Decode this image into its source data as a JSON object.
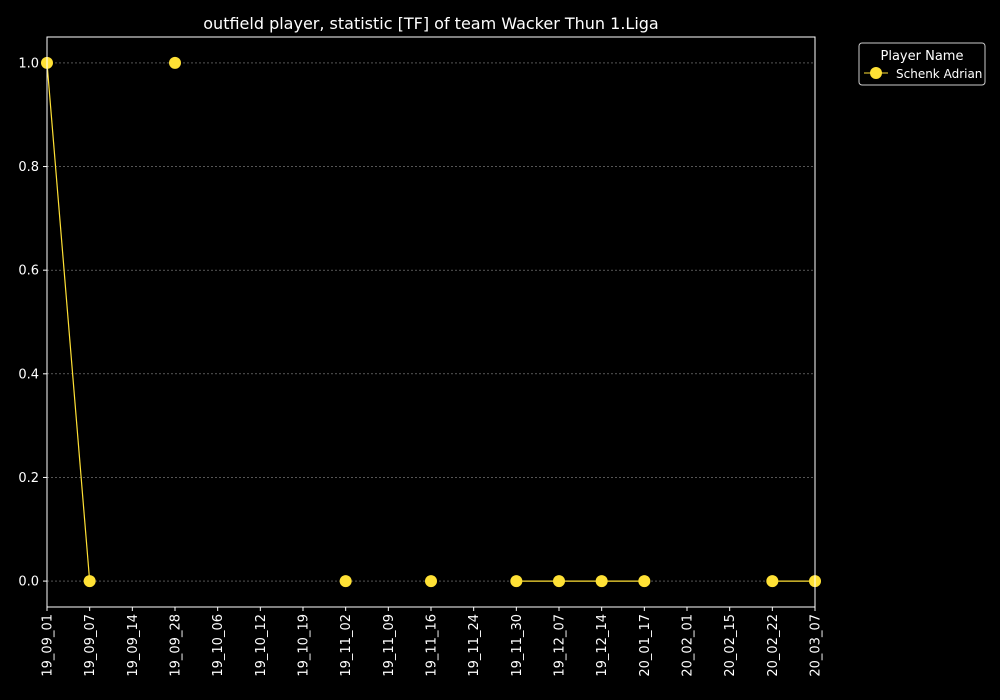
{
  "chart_data": {
    "type": "line",
    "title": "outfield player, statistic [TF] of team Wacker Thun 1.Liga",
    "xlabel": "",
    "ylabel": "",
    "x_ticks": [
      "19_09_01",
      "19_09_07",
      "19_09_14",
      "19_09_28",
      "19_10_06",
      "19_10_12",
      "19_10_19",
      "19_11_02",
      "19_11_09",
      "19_11_16",
      "19_11_24",
      "19_11_30",
      "19_12_07",
      "19_12_14",
      "20_01_17",
      "20_02_01",
      "20_02_15",
      "20_02_22",
      "20_03_07"
    ],
    "y_ticks": [
      "0.0",
      "0.2",
      "0.4",
      "0.6",
      "0.8",
      "1.0"
    ],
    "ylim": [
      -0.05,
      1.05
    ],
    "grid": "horizontal dashed",
    "legend": {
      "title": "Player Name",
      "position": "outside-right-top"
    },
    "series": [
      {
        "name": "Schenk Adrian",
        "color": "#FFE135",
        "points": [
          {
            "x": "19_09_01",
            "y": 1.0
          },
          {
            "x": "19_09_07",
            "y": 0.0
          },
          {
            "x": "19_09_28",
            "y": 1.0
          },
          {
            "x": "19_11_02",
            "y": 0.0
          },
          {
            "x": "19_11_16",
            "y": 0.0
          },
          {
            "x": "19_11_30",
            "y": 0.0
          },
          {
            "x": "19_12_07",
            "y": 0.0
          },
          {
            "x": "19_12_14",
            "y": 0.0
          },
          {
            "x": "20_01_17",
            "y": 0.0
          },
          {
            "x": "20_02_22",
            "y": 0.0
          },
          {
            "x": "20_03_07",
            "y": 0.0
          }
        ],
        "line_segments": [
          [
            "19_09_01",
            "19_09_07"
          ],
          [
            "19_11_30",
            "19_12_07"
          ],
          [
            "19_12_07",
            "19_12_14"
          ],
          [
            "19_12_14",
            "20_01_17"
          ],
          [
            "20_02_22",
            "20_03_07"
          ]
        ]
      }
    ]
  }
}
